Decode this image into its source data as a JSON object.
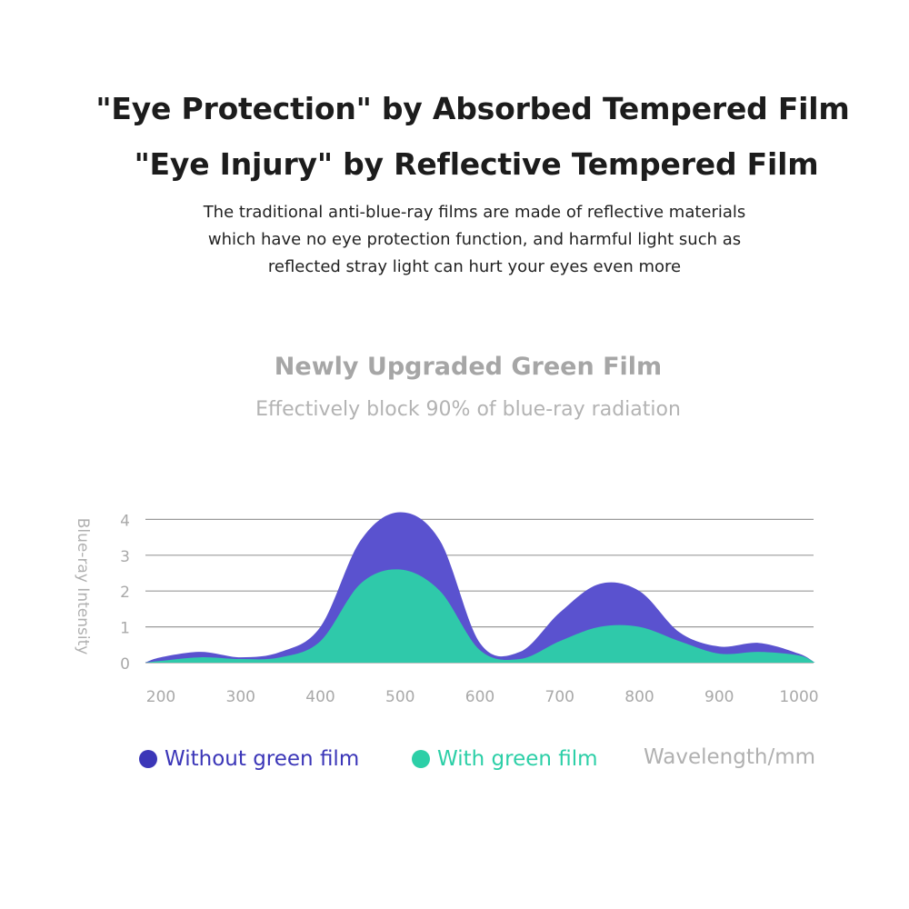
{
  "header": {
    "headline_1": "\"Eye Protection\" by Absorbed Tempered Film",
    "headline_2": "\"Eye Injury\" by Reflective Tempered Film",
    "description": [
      "The traditional anti-blue-ray films are made of reflective materials",
      "which have no eye protection function, and harmful light such as",
      "reflected stray light can hurt your eyes even more"
    ]
  },
  "section": {
    "title": "Newly Upgraded Green Film",
    "caption": "Effectively block 90% of blue-ray radiation"
  },
  "chart_data": {
    "type": "area",
    "xlabel": "Wavelength/mm",
    "ylabel": "Blue-ray Intensity",
    "xlim": [
      180,
      1020
    ],
    "ylim": [
      0,
      4.4
    ],
    "x_ticks": [
      200,
      300,
      400,
      500,
      600,
      700,
      800,
      900,
      1000
    ],
    "y_ticks": [
      0,
      1,
      2,
      3,
      4
    ],
    "grid": true,
    "legend_position": "bottom",
    "series": [
      {
        "name": "Without green film",
        "color": "#5a52cf",
        "x": [
          180,
          200,
          250,
          300,
          350,
          400,
          450,
          500,
          550,
          600,
          650,
          700,
          750,
          800,
          850,
          900,
          950,
          1000,
          1020
        ],
        "values": [
          0,
          0.15,
          0.3,
          0.15,
          0.3,
          1.0,
          3.4,
          4.2,
          3.4,
          0.55,
          0.3,
          1.4,
          2.2,
          2.0,
          0.85,
          0.45,
          0.55,
          0.25,
          0
        ]
      },
      {
        "name": "With green film",
        "color": "#2fc9aa",
        "x": [
          180,
          200,
          250,
          300,
          350,
          400,
          450,
          500,
          550,
          600,
          650,
          700,
          750,
          800,
          850,
          900,
          950,
          1000,
          1020
        ],
        "values": [
          0,
          0.05,
          0.15,
          0.1,
          0.15,
          0.6,
          2.2,
          2.6,
          2.0,
          0.35,
          0.1,
          0.6,
          1.0,
          1.0,
          0.6,
          0.25,
          0.3,
          0.2,
          0
        ]
      }
    ],
    "legend_dot_colors": [
      "#3b36b8",
      "#2ccfa7"
    ]
  }
}
